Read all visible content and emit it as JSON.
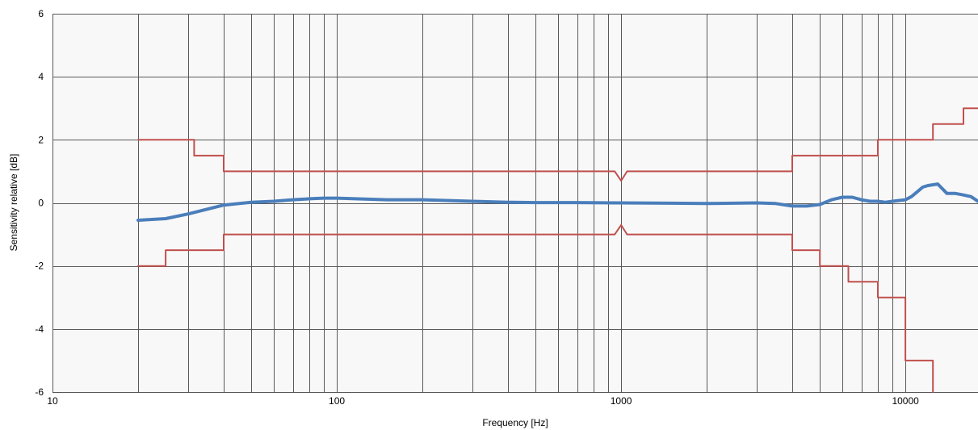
{
  "chart_data": {
    "type": "line",
    "title": "",
    "xlabel": "Frequency [Hz]",
    "ylabel": "Sensitivity relative [dB]",
    "xscale": "log",
    "xlim": [
      10,
      18000
    ],
    "ylim": [
      -6,
      6
    ],
    "grid": true,
    "legend": "none",
    "x_tick_labels": [
      "10",
      "100",
      "1000",
      "10000"
    ],
    "x_tick_values": [
      10,
      100,
      1000,
      10000
    ],
    "y_tick_labels": [
      "-6",
      "-4",
      "-2",
      "0",
      "2",
      "4",
      "6"
    ],
    "y_tick_values": [
      -6,
      -4,
      -2,
      0,
      2,
      4,
      6
    ],
    "colors": {
      "measured": "#4a7ebb",
      "tolerance": "#c0504d",
      "grid": "#595959",
      "plot_bg": "#f8f8f8"
    },
    "series": [
      {
        "role": "measured",
        "x": [
          20,
          25,
          30,
          35,
          40,
          50,
          60,
          70,
          80,
          90,
          100,
          150,
          200,
          300,
          400,
          500,
          700,
          1000,
          1500,
          2000,
          3000,
          3500,
          4000,
          4500,
          5000,
          5500,
          6000,
          6500,
          7000,
          7500,
          8000,
          8500,
          9000,
          10000,
          10500,
          11000,
          11500,
          12000,
          13000,
          14000,
          15000,
          16000,
          17000,
          18000
        ],
        "y": [
          -0.55,
          -0.5,
          -0.35,
          -0.2,
          -0.07,
          0.02,
          0.05,
          0.1,
          0.13,
          0.15,
          0.15,
          0.1,
          0.1,
          0.05,
          0.02,
          0.01,
          0.01,
          0.0,
          -0.01,
          -0.02,
          0.0,
          -0.02,
          -0.1,
          -0.1,
          -0.05,
          0.1,
          0.18,
          0.18,
          0.1,
          0.05,
          0.05,
          0.02,
          0.05,
          0.1,
          0.2,
          0.35,
          0.5,
          0.55,
          0.6,
          0.3,
          0.3,
          0.25,
          0.2,
          0.05
        ]
      },
      {
        "role": "tolerance",
        "x": [
          20,
          31.5,
          31.5,
          40,
          40,
          950,
          1000,
          1050,
          4000,
          4000,
          8000,
          8000,
          12500,
          12500,
          16000,
          16000,
          18000
        ],
        "y": [
          2,
          2,
          1.5,
          1.5,
          1,
          1,
          0.7,
          1,
          1,
          1.5,
          1.5,
          2,
          2,
          2.5,
          2.5,
          3,
          3
        ]
      },
      {
        "role": "tolerance",
        "x": [
          20,
          25,
          25,
          40,
          40,
          950,
          1000,
          1050,
          4000,
          4000,
          5000,
          5000,
          6300,
          6300,
          8000,
          8000,
          10000,
          10000,
          12500,
          12500
        ],
        "y": [
          -2,
          -2,
          -1.5,
          -1.5,
          -1,
          -1,
          -0.7,
          -1,
          -1,
          -1.5,
          -1.5,
          -2,
          -2,
          -2.5,
          -2.5,
          -3,
          -3,
          -5,
          -5,
          -6
        ]
      }
    ]
  }
}
